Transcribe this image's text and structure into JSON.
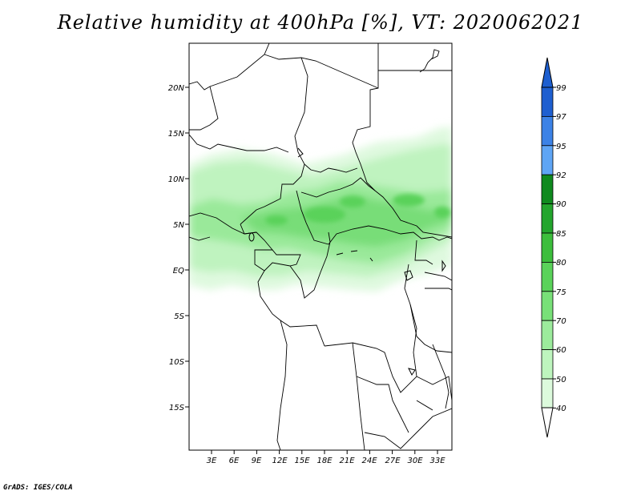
{
  "title": "Relative humidity at 400hPa [%], VT: 2020062021",
  "credit": "GrADS: IGES/COLA",
  "map": {
    "lat_labels": [
      "20N",
      "15N",
      "10N",
      "5N",
      "EQ",
      "5S",
      "10S",
      "15S"
    ],
    "lon_labels": [
      "3E",
      "6E",
      "9E",
      "12E",
      "15E",
      "18E",
      "21E",
      "24E",
      "27E",
      "30E",
      "33E"
    ],
    "extent": {
      "lon_min": 0,
      "lon_max": 35,
      "lat_min": -19,
      "lat_max": 24
    },
    "variable": "relative humidity",
    "level": "400hPa"
  },
  "colorbar": {
    "levels": [
      "99",
      "97",
      "95",
      "92",
      "90",
      "85",
      "80",
      "75",
      "70",
      "60",
      "50",
      "40"
    ],
    "colors": [
      "#1e5fd0",
      "#3c82e6",
      "#5fa5f5",
      "#0f8a1e",
      "#23a52d",
      "#3cbe3c",
      "#5ad25a",
      "#78e078",
      "#9ceb9c",
      "#bef5be",
      "#dcfadc",
      "#f0fff0"
    ],
    "top_arrow_color": "#1e5fd0",
    "bottom_arrow_color": "#ffffff"
  }
}
